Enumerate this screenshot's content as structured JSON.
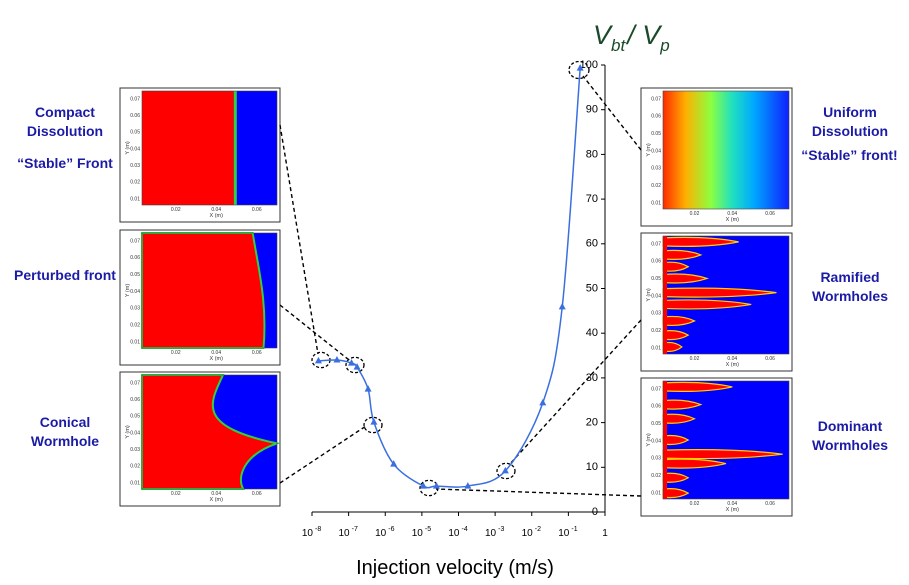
{
  "chart_data": {
    "type": "line",
    "title_parts": [
      "V",
      "bt",
      "/ V",
      "p"
    ],
    "xlabel": "Injection velocity (m/s)",
    "xscale": "log",
    "xlim": [
      1e-08,
      1
    ],
    "xticks": [
      {
        "value": 1e-08,
        "label": "10",
        "exponent": "-8"
      },
      {
        "value": 1e-07,
        "label": "10",
        "exponent": "-7"
      },
      {
        "value": 1e-06,
        "label": "10",
        "exponent": "-6"
      },
      {
        "value": 1e-05,
        "label": "10",
        "exponent": "-5"
      },
      {
        "value": 0.0001,
        "label": "10",
        "exponent": "-4"
      },
      {
        "value": 0.001,
        "label": "10",
        "exponent": "-3"
      },
      {
        "value": 0.01,
        "label": "10",
        "exponent": "-2"
      },
      {
        "value": 0.1,
        "label": "10",
        "exponent": "-1"
      },
      1
    ],
    "ylim": [
      0,
      100
    ],
    "yticks": [
      0,
      10,
      20,
      30,
      40,
      50,
      60,
      70,
      80,
      90,
      100
    ],
    "color": "#3a6fe0",
    "x": [
      1.5e-08,
      4.8e-08,
      1.2e-07,
      1.7e-07,
      3.4e-07,
      4.9e-07,
      1.7e-06,
      1.1e-05,
      2.5e-05,
      0.00018,
      0.0019,
      0.02,
      0.068,
      0.21
    ],
    "values": [
      33.8,
      34,
      33.3,
      32.4,
      27.5,
      20.1,
      10.7,
      5.8,
      5.8,
      5.8,
      9.2,
      24.4,
      45.9,
      99.3
    ],
    "annotations": [
      {
        "lines": [
          "Compact",
          "Dissolution"
        ]
      },
      {
        "lines": [
          "“Stable” Front"
        ]
      },
      {
        "lines": [
          "Perturbed front"
        ]
      },
      {
        "lines": [
          "Conical",
          "Wormhole"
        ]
      },
      {
        "lines": [
          "Uniform",
          "Dissolution"
        ]
      },
      {
        "lines": [
          "“Stable” front!"
        ]
      },
      {
        "lines": [
          "Ramified",
          "Wormholes"
        ]
      },
      {
        "lines": [
          "Dominant",
          "Wormholes"
        ]
      }
    ],
    "inset_axes": {
      "yticks": [
        "0.07",
        "0.06",
        "0.05",
        "0.04",
        "0.03",
        "0.02",
        "0.01"
      ],
      "xticks": [
        "0.02",
        "0.04",
        "0.06"
      ],
      "xlabel": "X (m)",
      "ylabel": "Y (m)"
    }
  }
}
